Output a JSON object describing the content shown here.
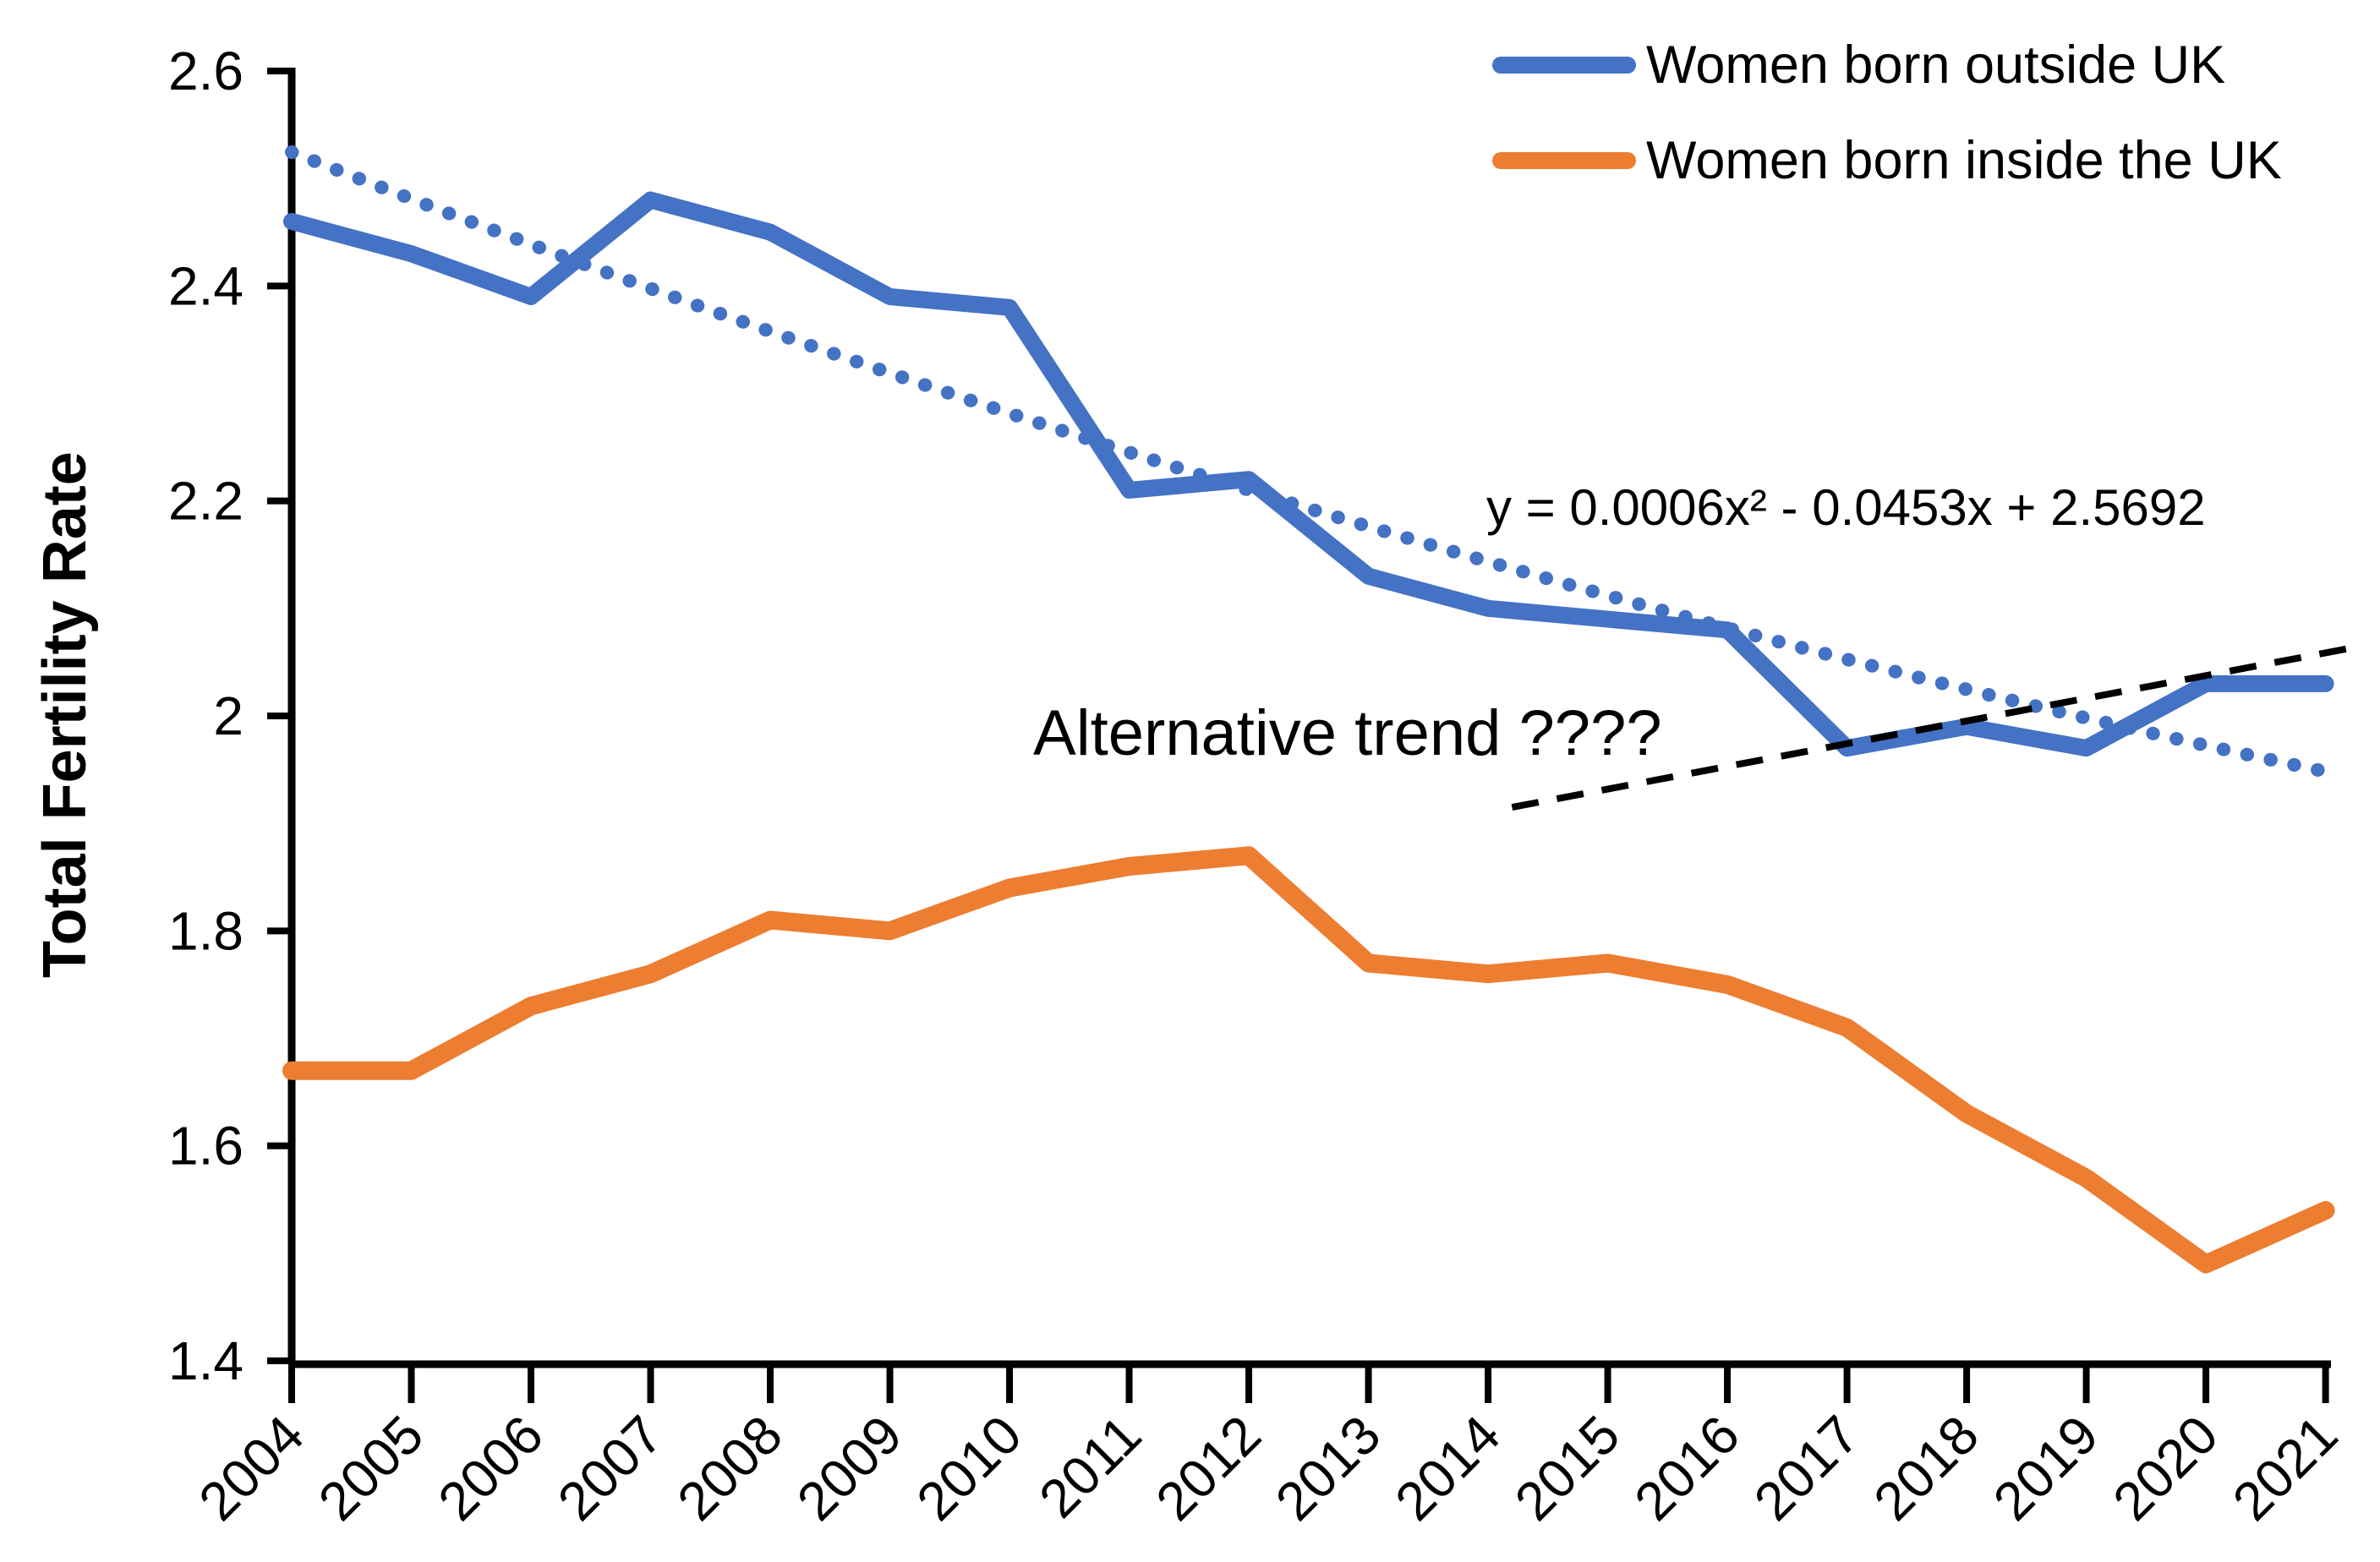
{
  "figure": {
    "background": "#ffffff",
    "axis_color": "#000000"
  },
  "y_axis": {
    "title": "Total Fertility Rate",
    "tick_labels": [
      "2.6",
      "2.4",
      "2.2",
      "2",
      "1.8",
      "1.6",
      "1.4"
    ],
    "tick_values": [
      2.6,
      2.4,
      2.2,
      2.0,
      1.8,
      1.6,
      1.4
    ],
    "min": 1.4,
    "max": 2.6
  },
  "x_axis": {
    "tick_labels": [
      "2004",
      "2005",
      "2006",
      "2007",
      "2008",
      "2009",
      "2010",
      "2011",
      "2012",
      "2013",
      "2014",
      "2015",
      "2016",
      "2017",
      "2018",
      "2019",
      "2020",
      "2021"
    ]
  },
  "legend": {
    "items": [
      {
        "label": "Women born outside UK",
        "color": "#4472C4"
      },
      {
        "label": "Women born inside the UK",
        "color": "#ED7D31"
      }
    ]
  },
  "annotations": {
    "equation": "y = 0.0006x² - 0.0453x + 2.5692",
    "alt_trend": "Alternative trend ????"
  },
  "chart_data": {
    "type": "line",
    "title": "",
    "xlabel": "",
    "ylabel": "Total Fertility Rate",
    "ylim": [
      1.4,
      2.6
    ],
    "grid": false,
    "legend_position": "top-right",
    "x": [
      2004,
      2005,
      2006,
      2007,
      2008,
      2009,
      2010,
      2011,
      2012,
      2013,
      2014,
      2015,
      2016,
      2017,
      2018,
      2019,
      2020,
      2021
    ],
    "series": [
      {
        "name": "Women born outside UK",
        "color": "#4472C4",
        "style": "solid",
        "values": [
          2.46,
          2.43,
          2.39,
          2.48,
          2.45,
          2.39,
          2.38,
          2.21,
          2.22,
          2.13,
          2.1,
          2.09,
          2.08,
          1.97,
          1.99,
          1.97,
          2.03,
          2.03
        ]
      },
      {
        "name": "Women born inside the UK",
        "color": "#ED7D31",
        "style": "solid",
        "values": [
          1.67,
          1.67,
          1.73,
          1.76,
          1.81,
          1.8,
          1.84,
          1.86,
          1.87,
          1.77,
          1.76,
          1.77,
          1.75,
          1.71,
          1.63,
          1.57,
          1.49,
          1.54
        ]
      }
    ],
    "trendline": {
      "applies_to": "Women born outside UK",
      "equation_label": "y = 0.0006x² - 0.0453x + 2.5692",
      "coefficients": {
        "a": 0.0006,
        "b": -0.0453,
        "c": 2.5692
      },
      "x_domain_indices": [
        1,
        18
      ],
      "style": "dotted",
      "color": "#4472C4"
    },
    "alt_trendline": {
      "label": "Alternative trend ????",
      "style": "dashed",
      "color": "#000000",
      "start": {
        "year": 2014.2,
        "value": 1.915
      },
      "end": {
        "year": 2021.3,
        "value": 2.065
      }
    }
  }
}
